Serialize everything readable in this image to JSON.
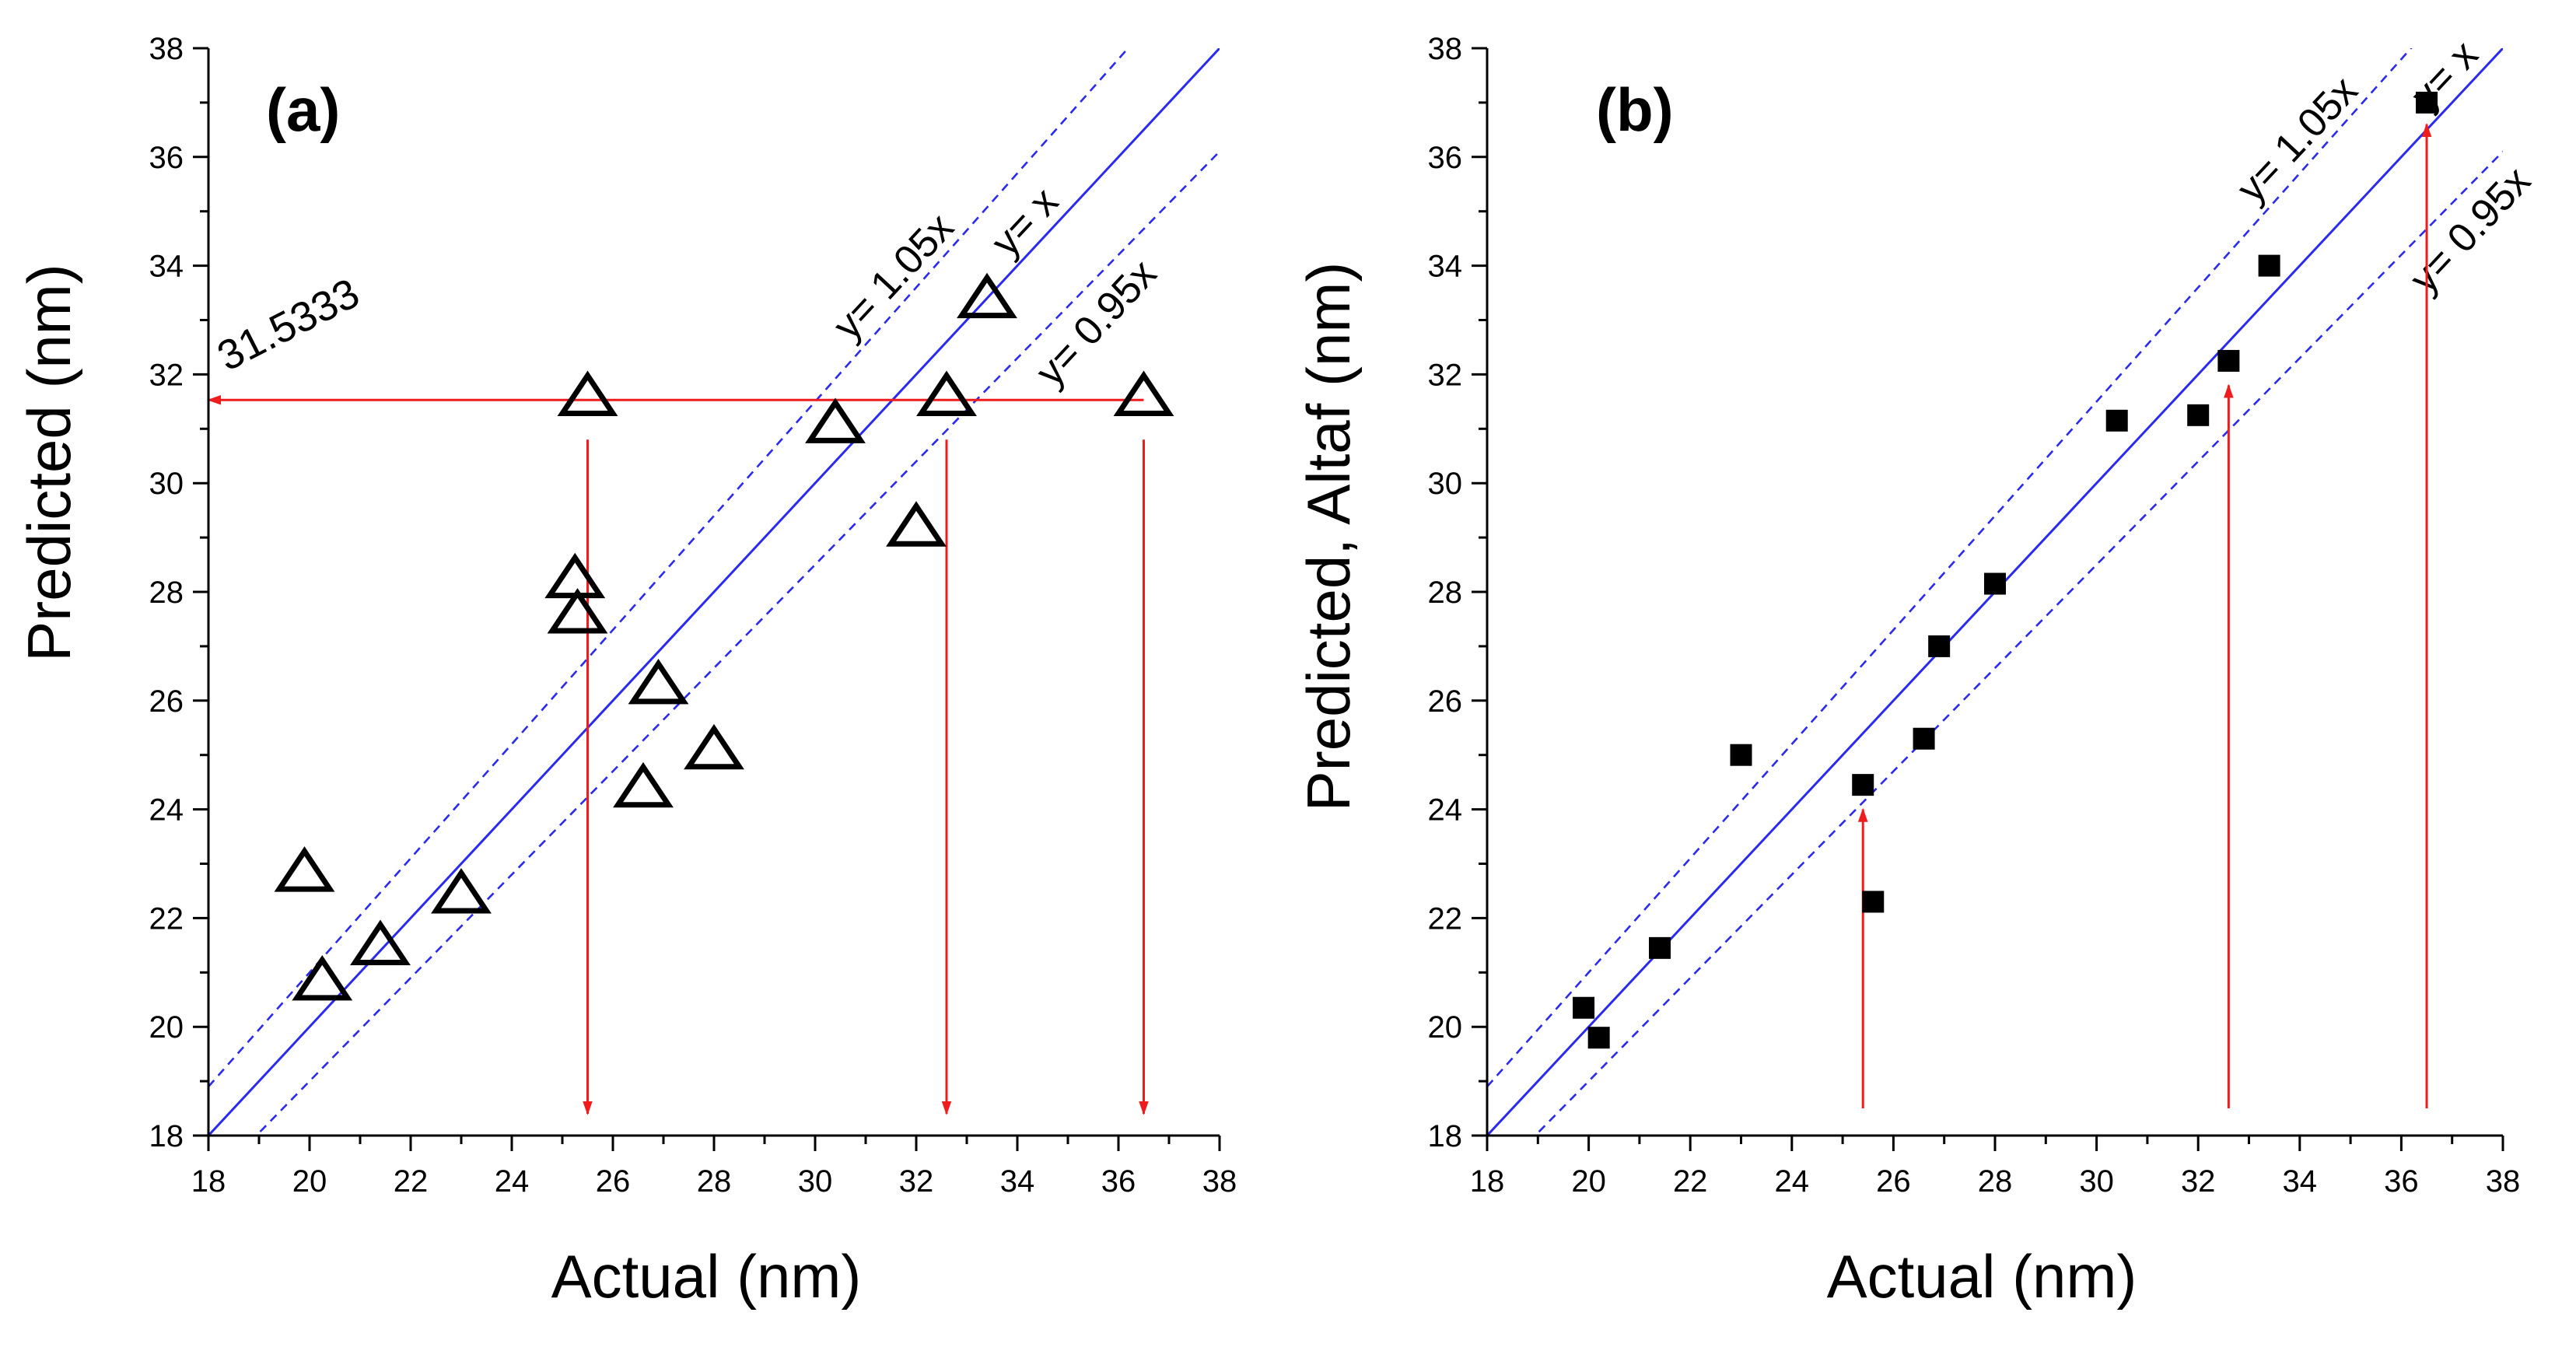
{
  "colors": {
    "axis": "#000000",
    "ref_line": "#2a2af0",
    "arrow": "#ee1c1c",
    "marker": "#000000"
  },
  "chart_data": [
    {
      "id": "a",
      "type": "scatter",
      "panel_label": "(a)",
      "xlabel": "Actual (nm)",
      "ylabel": "Predicted (nm)",
      "xlim": [
        18,
        38
      ],
      "ylim": [
        18,
        38
      ],
      "xticks": [
        18,
        20,
        22,
        24,
        26,
        28,
        30,
        32,
        34,
        36,
        38
      ],
      "yticks": [
        18,
        20,
        22,
        24,
        26,
        28,
        30,
        32,
        34,
        36,
        38
      ],
      "grid": false,
      "marker": "open-triangle",
      "series": [
        {
          "name": "Predicted",
          "x": [
            19.9,
            20.25,
            21.4,
            23.0,
            25.25,
            25.3,
            25.5,
            26.9,
            26.6,
            28.0,
            30.4,
            32.0,
            32.6,
            33.4,
            36.5
          ],
          "y": [
            22.8,
            20.8,
            21.45,
            22.4,
            28.2,
            27.55,
            31.55,
            26.25,
            24.35,
            25.05,
            31.05,
            29.15,
            31.55,
            33.35,
            31.55
          ]
        }
      ],
      "reference_lines": [
        {
          "slope": 1.0,
          "label": "y= x",
          "style": "solid"
        },
        {
          "slope": 1.05,
          "label": "y= 1.05x",
          "style": "dashed"
        },
        {
          "slope": 0.95,
          "label": "y= 0.95x",
          "style": "dashed"
        }
      ],
      "annotation_value": "31.5333",
      "arrows": [
        {
          "from": [
            36.5,
            31.53
          ],
          "to": [
            18.0,
            31.53
          ]
        },
        {
          "from": [
            25.5,
            30.8
          ],
          "to": [
            25.5,
            18.4
          ]
        },
        {
          "from": [
            32.6,
            30.8
          ],
          "to": [
            32.6,
            18.4
          ]
        },
        {
          "from": [
            36.5,
            30.8
          ],
          "to": [
            36.5,
            18.4
          ]
        }
      ]
    },
    {
      "id": "b",
      "type": "scatter",
      "panel_label": "(b)",
      "xlabel": "Actual (nm)",
      "ylabel": "Predicted, Altaf (nm)",
      "xlim": [
        18,
        38
      ],
      "ylim": [
        18,
        38
      ],
      "xticks": [
        18,
        20,
        22,
        24,
        26,
        28,
        30,
        32,
        34,
        36,
        38
      ],
      "yticks": [
        18,
        20,
        22,
        24,
        26,
        28,
        30,
        32,
        34,
        36,
        38
      ],
      "grid": false,
      "marker": "filled-square",
      "series": [
        {
          "name": "Predicted, Altaf",
          "x": [
            19.9,
            20.2,
            21.4,
            23.0,
            25.4,
            25.6,
            26.6,
            26.9,
            28.0,
            30.4,
            32.0,
            32.6,
            33.4,
            36.5
          ],
          "y": [
            20.35,
            19.8,
            21.45,
            25.0,
            24.45,
            22.3,
            25.3,
            27.0,
            28.15,
            31.15,
            31.25,
            32.25,
            34.0,
            37.0
          ]
        }
      ],
      "reference_lines": [
        {
          "slope": 1.0,
          "label": "y= x",
          "style": "solid"
        },
        {
          "slope": 1.05,
          "label": "y= 1.05x",
          "style": "dashed"
        },
        {
          "slope": 0.95,
          "label": "y= 0.95x",
          "style": "dashed"
        }
      ],
      "arrows": [
        {
          "from": [
            25.4,
            18.5
          ],
          "to": [
            25.4,
            24.0
          ]
        },
        {
          "from": [
            32.6,
            18.5
          ],
          "to": [
            32.6,
            31.8
          ]
        },
        {
          "from": [
            36.5,
            18.5
          ],
          "to": [
            36.5,
            36.6
          ]
        }
      ]
    }
  ]
}
